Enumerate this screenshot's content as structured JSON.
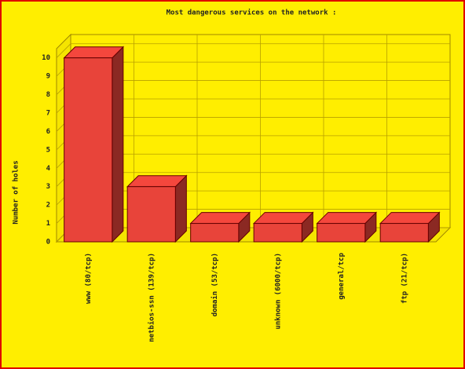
{
  "chart_data": {
    "type": "bar3d",
    "title": "Most dangerous services on the network :",
    "y_label": "Number of holes",
    "categories": [
      "www (80/tcp)",
      "netbios-ssn (139/tcp)",
      "domain (53/tcp)",
      "unknown (6000/tcp)",
      "general/tcp",
      "ftp (21/tcp)"
    ],
    "values": [
      10,
      3,
      1,
      1,
      1,
      1
    ],
    "color": "#e8443a",
    "ylim": [
      0,
      10.5
    ],
    "yticks": [
      0,
      1,
      2,
      3,
      4,
      5,
      6,
      7,
      8,
      9,
      10
    ],
    "grid": true
  }
}
